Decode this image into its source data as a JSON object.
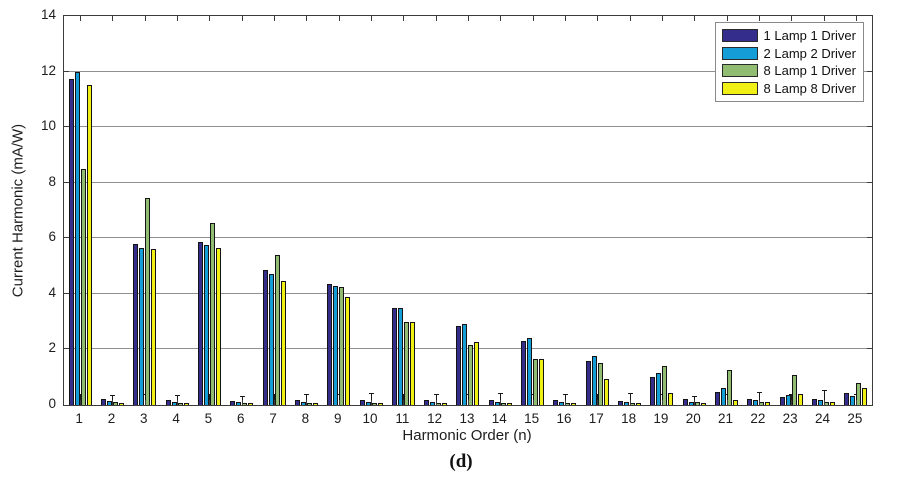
{
  "figure": {
    "caption": "(d)"
  },
  "chart_data": {
    "type": "bar",
    "title": "",
    "xlabel": "Harmonic Order (n)",
    "ylabel": "Current Harmonic (mA/W)",
    "ylim": [
      0,
      14
    ],
    "yticks": [
      0,
      2,
      4,
      6,
      8,
      10,
      12,
      14
    ],
    "grid": "horizontal",
    "legend_position": "top-right-inside",
    "categories": [
      1,
      2,
      3,
      4,
      5,
      6,
      7,
      8,
      9,
      10,
      11,
      12,
      13,
      14,
      15,
      16,
      17,
      18,
      19,
      20,
      21,
      22,
      23,
      24,
      25
    ],
    "series": [
      {
        "name": "1 Lamp 1 Driver",
        "color": "#342d8c",
        "values": [
          11.75,
          0.22,
          5.8,
          0.18,
          5.85,
          0.15,
          4.85,
          0.17,
          4.35,
          0.17,
          3.5,
          0.18,
          2.85,
          0.18,
          2.3,
          0.18,
          1.6,
          0.15,
          1.0,
          0.2,
          0.47,
          0.22,
          0.28,
          0.22,
          0.42
        ]
      },
      {
        "name": "2 Lamp 2 Driver",
        "color": "#159dd8",
        "values": [
          12.0,
          0.15,
          5.65,
          0.12,
          5.75,
          0.12,
          4.7,
          0.1,
          4.3,
          0.12,
          3.5,
          0.1,
          2.9,
          0.1,
          2.4,
          0.12,
          1.75,
          0.1,
          1.15,
          0.12,
          0.63,
          0.18,
          0.37,
          0.18,
          0.33
        ]
      },
      {
        "name": "8 Lamp 1 Driver",
        "color": "#90bd71",
        "values": [
          8.5,
          0.1,
          7.45,
          0.07,
          6.55,
          0.07,
          5.4,
          0.07,
          4.25,
          0.08,
          3.0,
          0.08,
          2.15,
          0.08,
          1.65,
          0.07,
          1.5,
          0.08,
          1.42,
          0.1,
          1.27,
          0.12,
          1.08,
          0.12,
          0.8
        ]
      },
      {
        "name": "8 Lamp 8 Driver",
        "color": "#f1f014",
        "values": [
          11.5,
          0.07,
          5.6,
          0.06,
          5.65,
          0.06,
          4.45,
          0.06,
          3.9,
          0.07,
          2.97,
          0.06,
          2.25,
          0.07,
          1.65,
          0.06,
          0.95,
          0.07,
          0.42,
          0.07,
          0.18,
          0.12,
          0.4,
          0.1,
          0.63
        ]
      }
    ],
    "error_whiskers": {
      "anchor": "group-center",
      "color": "#1a1a1a",
      "tops": [
        0.35,
        0.32,
        0.35,
        0.33,
        0.35,
        0.3,
        0.35,
        0.35,
        0.35,
        0.38,
        0.35,
        0.35,
        0.35,
        0.38,
        0.35,
        0.35,
        0.35,
        0.4,
        0.35,
        0.3,
        0.35,
        0.45,
        0.35,
        0.5,
        0.35
      ]
    }
  },
  "colors": {
    "grid": "#8f8f8f",
    "axis_box": "#3c3c3c",
    "tick_label": "#1d1d1d",
    "background": "#ffffff"
  }
}
